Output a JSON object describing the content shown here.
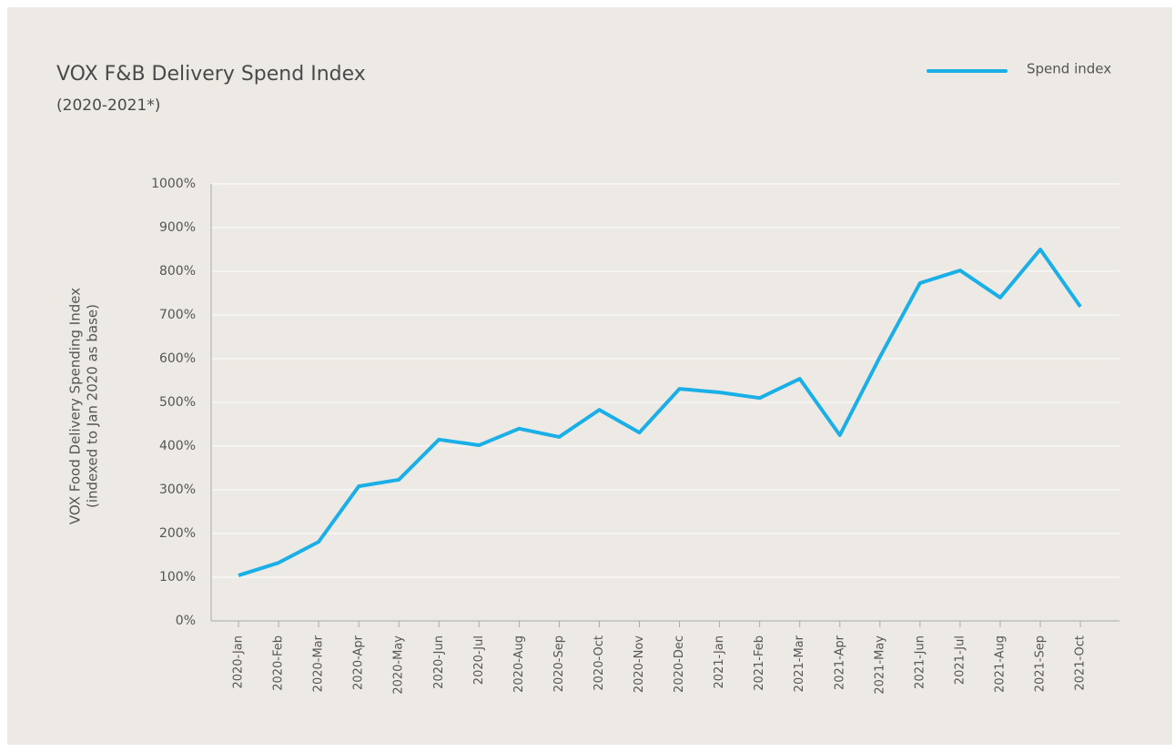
{
  "chart_data": {
    "type": "line",
    "title": "VOX F&B Delivery Spend Index",
    "subtitle": "(2020-2021*)",
    "y_label": [
      "VOX Food Delivery Spending Index",
      "(indexed to Jan 2020 as base)"
    ],
    "categories": [
      "2020-Jan",
      "2020-Feb",
      "2020-Mar",
      "2020-Apr",
      "2020-May",
      "2020-Jun",
      "2020-Jul",
      "2020-Aug",
      "2020-Sep",
      "2020-Oct",
      "2020-Nov",
      "2020-Dec",
      "2021-Jan",
      "2021-Feb",
      "2021-Mar",
      "2021-Apr",
      "2021-May",
      "2021-Jun",
      "2021-Jul",
      "2021-Aug",
      "2021-Sep",
      "2021-Oct"
    ],
    "series": [
      {
        "name": "Spend index",
        "color": "#1aafe6",
        "values": [
          104,
          133,
          181,
          308,
          323,
          415,
          402,
          440,
          421,
          483,
          431,
          531,
          523,
          510,
          554,
          425,
          604,
          773,
          802,
          740,
          850,
          719
        ]
      }
    ],
    "ylim": [
      0,
      1000
    ],
    "yticks": [
      {
        "value": 0,
        "label": "0%"
      },
      {
        "value": 100,
        "label": "100%"
      },
      {
        "value": 200,
        "label": "200%"
      },
      {
        "value": 300,
        "label": "300%"
      },
      {
        "value": 400,
        "label": "400%"
      },
      {
        "value": 500,
        "label": "500%"
      },
      {
        "value": 600,
        "label": "600%"
      },
      {
        "value": 700,
        "label": "700%"
      },
      {
        "value": 800,
        "label": "800%"
      },
      {
        "value": 900,
        "label": "900%"
      },
      {
        "value": 1000,
        "label": "1000%"
      }
    ],
    "grid": true,
    "legend": "top-right"
  }
}
